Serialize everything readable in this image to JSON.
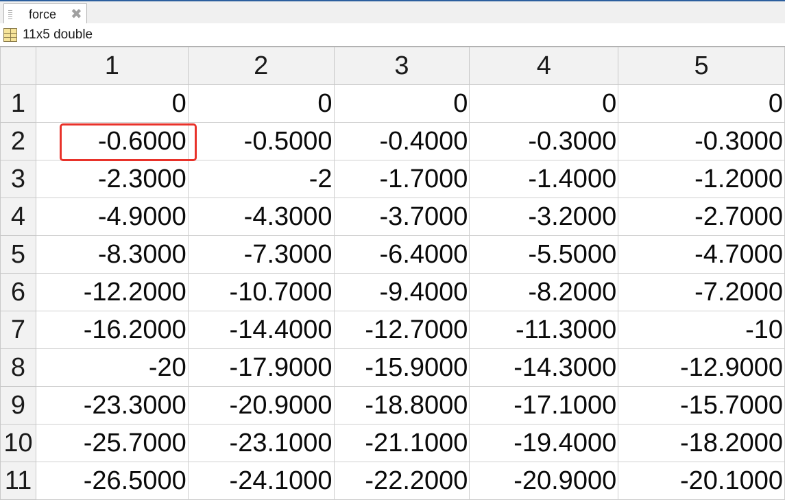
{
  "tab": {
    "label": "force",
    "close_glyph": "✖"
  },
  "variable_info": {
    "icon": "table-grid-icon",
    "dims": "11x5 double"
  },
  "table": {
    "columns": [
      "1",
      "2",
      "3",
      "4",
      "5"
    ],
    "rows": [
      {
        "label": "1",
        "cells": [
          "0",
          "0",
          "0",
          "0",
          "0"
        ]
      },
      {
        "label": "2",
        "cells": [
          "-0.6000",
          "-0.5000",
          "-0.4000",
          "-0.3000",
          "-0.3000"
        ]
      },
      {
        "label": "3",
        "cells": [
          "-2.3000",
          "-2",
          "-1.7000",
          "-1.4000",
          "-1.2000"
        ]
      },
      {
        "label": "4",
        "cells": [
          "-4.9000",
          "-4.3000",
          "-3.7000",
          "-3.2000",
          "-2.7000"
        ]
      },
      {
        "label": "5",
        "cells": [
          "-8.3000",
          "-7.3000",
          "-6.4000",
          "-5.5000",
          "-4.7000"
        ]
      },
      {
        "label": "6",
        "cells": [
          "-12.2000",
          "-10.7000",
          "-9.4000",
          "-8.2000",
          "-7.2000"
        ]
      },
      {
        "label": "7",
        "cells": [
          "-16.2000",
          "-14.4000",
          "-12.7000",
          "-11.3000",
          "-10"
        ]
      },
      {
        "label": "8",
        "cells": [
          "-20",
          "-17.9000",
          "-15.9000",
          "-14.3000",
          "-12.9000"
        ]
      },
      {
        "label": "9",
        "cells": [
          "-23.3000",
          "-20.9000",
          "-18.8000",
          "-17.1000",
          "-15.7000"
        ]
      },
      {
        "label": "10",
        "cells": [
          "-25.7000",
          "-23.1000",
          "-21.1000",
          "-19.4000",
          "-18.2000"
        ]
      },
      {
        "label": "11",
        "cells": [
          "-26.5000",
          "-24.1000",
          "-22.2000",
          "-20.9000",
          "-20.1000"
        ]
      }
    ],
    "highlight": {
      "row": 2,
      "col": 1,
      "color": "#e8322a"
    }
  }
}
